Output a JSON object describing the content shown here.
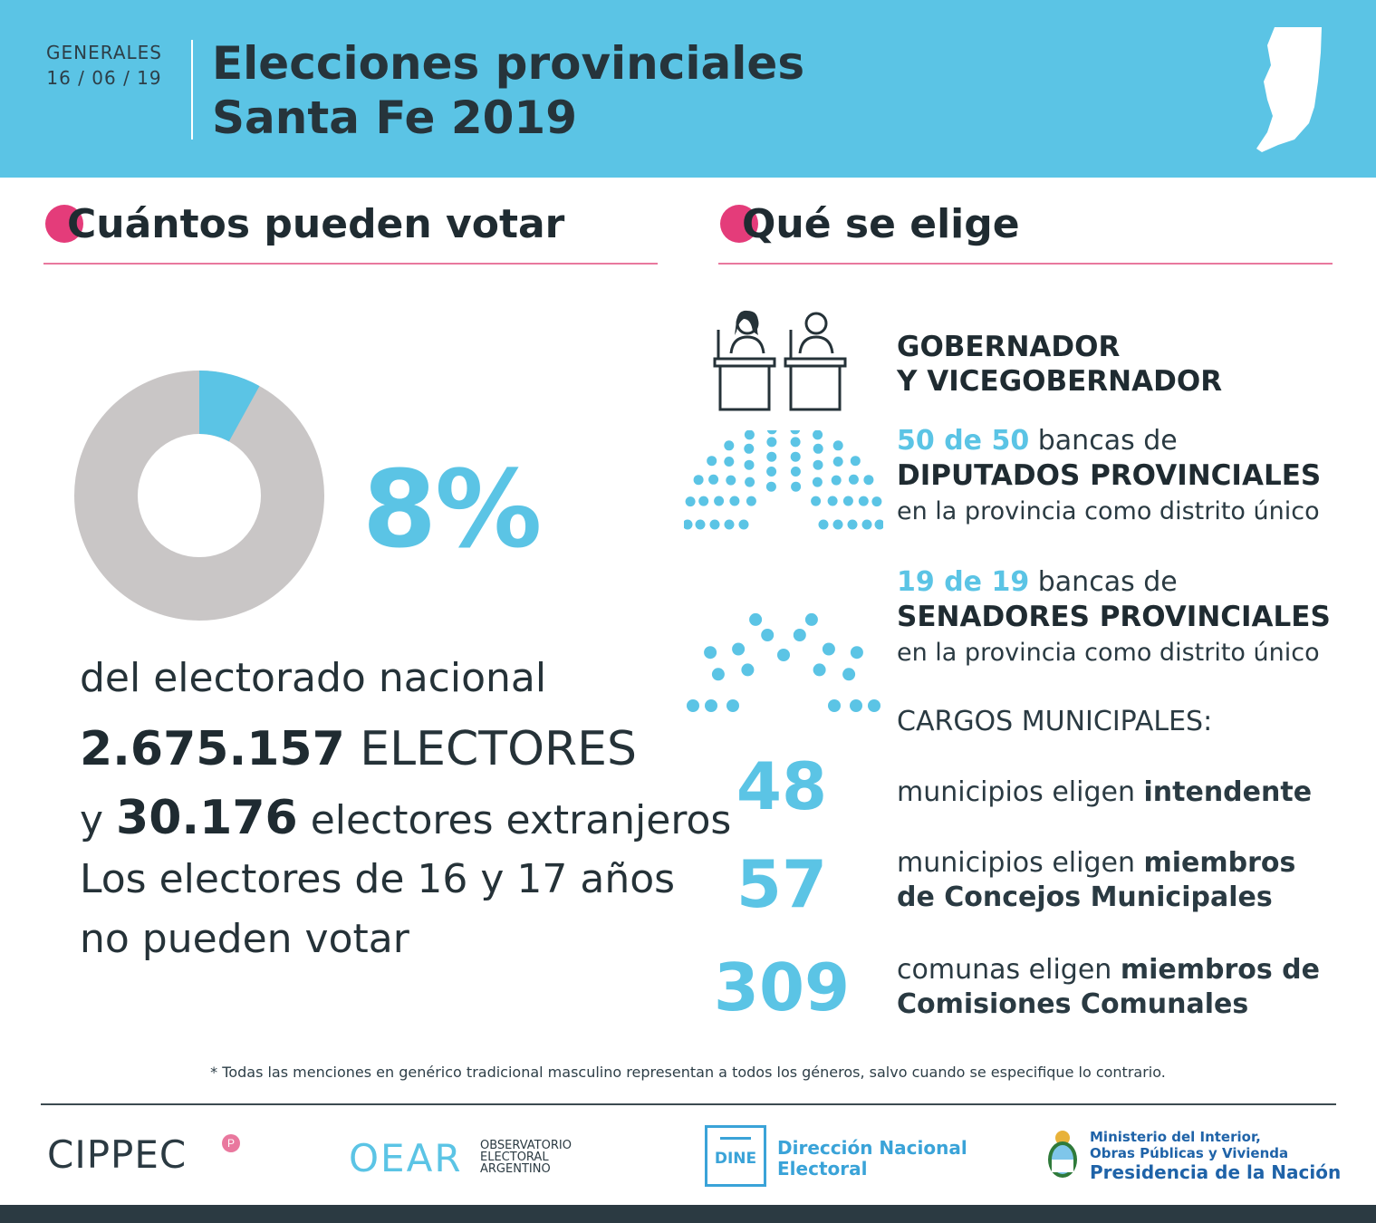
{
  "header": {
    "label_line1": "GENERALES",
    "label_line2": "16 / 06 / 19",
    "title_line1": "Elecciones provinciales",
    "title_line2": "Santa Fe 2019",
    "map_icon": "santa-fe-map-icon"
  },
  "left": {
    "heading": "Cuántos pueden votar",
    "percent_value": 8,
    "percent_text": "8%",
    "line1": "del electorado nacional",
    "electores_num": "2.675.157",
    "electores_label": " ELECTORES",
    "extranjeros_y": "y ",
    "extranjeros_num": "30.176",
    "extranjeros_label": " electores extranjeros",
    "note_line1": "Los electores de 16 y 17 años",
    "note_line2": "no pueden votar"
  },
  "right": {
    "heading": "Qué se elige",
    "gob_line1": "GOBERNADOR",
    "gob_line2": "Y VICEGOBERNADOR",
    "dip_count": "50 de 50",
    "dip_bancas": " bancas de",
    "dip_title": "DIPUTADOS PROVINCIALES",
    "dip_sub": "en la provincia como distrito único",
    "sen_count": "19 de 19",
    "sen_bancas": " bancas de",
    "sen_title": "SENADORES PROVINCIALES",
    "sen_sub": "en la provincia como distrito único",
    "cargos": "CARGOS MUNICIPALES:",
    "m1_num": "48",
    "m1_text": "municipios eligen ",
    "m1_bold": "intendente",
    "m2_num": "57",
    "m2_text": "municipios eligen ",
    "m2_bold1": "miembros",
    "m2_bold2": "de Concejos Municipales",
    "m3_num": "309",
    "m3_text": "comunas eligen ",
    "m3_bold1": "miembros de",
    "m3_bold2": "Comisiones Comunales"
  },
  "footer": {
    "note": "* Todas las menciones en genérico tradicional masculino representan a todos los géneros, salvo cuando se especifique lo contrario.",
    "cippec": "CIPPEC",
    "cippec_badge": "P",
    "oear": "OEAR",
    "oear_l1": "OBSERVATORIO",
    "oear_l2": "ELECTORAL",
    "oear_l3": "ARGENTINO",
    "dine_box": "DINE",
    "dine_l1": "Dirección Nacional",
    "dine_l2": "Electoral",
    "min_l1": "Ministerio del Interior,",
    "min_l2": "Obras Públicas y Vivienda",
    "min_l3": "Presidencia de la Nación"
  },
  "colors": {
    "accent": "#5bc4e5",
    "pink": "#e43c7a",
    "dark": "#253238",
    "grey": "#c9c6c6"
  }
}
